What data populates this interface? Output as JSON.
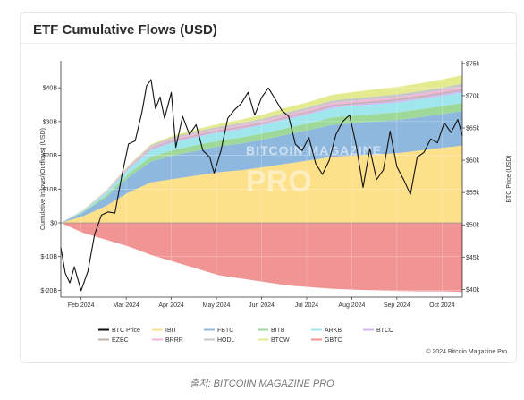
{
  "card": {
    "title": "ETF Cumulative Flows (USD)",
    "copyright": "© 2024 Bitcoin Magazine Pro."
  },
  "caption": "출처: BITCOIIN MAGAZINE PRO",
  "watermark": {
    "line1": "BITCOIN MAGAZINE",
    "line2": "PRO"
  },
  "chart_data": {
    "type": "area",
    "title": "ETF Cumulative Flows (USD)",
    "xlabel": "",
    "ylabel": "Cumulative Inflows/(Outflows) (USD)",
    "y2label": "BTC Price (USD)",
    "x_ticks": [
      "Feb 2024",
      "Mar 2024",
      "Apr 2024",
      "May 2024",
      "Jun 2024",
      "Jul 2024",
      "Aug 2024",
      "Sep 2024",
      "Oct 2024"
    ],
    "y_ticks": [
      "$40B",
      "$30B",
      "$20B",
      "$10B",
      "$0",
      "$-10B",
      "$-20B"
    ],
    "y_tick_values": [
      40,
      30,
      20,
      10,
      0,
      -10,
      -20
    ],
    "y2_ticks": [
      "$75k",
      "$70k",
      "$65k",
      "$60k",
      "$55k",
      "$50k",
      "$45k",
      "$40k"
    ],
    "y2_tick_values": [
      75000,
      70000,
      65000,
      60000,
      55000,
      50000,
      45000,
      40000
    ],
    "ylim": [
      -22,
      48
    ],
    "y2lim": [
      38800,
      75400
    ],
    "x_months": [
      0,
      8.9
    ],
    "grid": true,
    "legend_position": "bottom",
    "months": [
      0,
      0.5,
      1,
      1.5,
      2,
      2.5,
      3,
      3.5,
      4,
      4.5,
      5,
      5.5,
      6,
      6.5,
      7,
      7.5,
      8,
      8.5,
      8.9
    ],
    "series": [
      {
        "name": "IBIT",
        "color": "#fde08a",
        "values": [
          0,
          2,
          5,
          9,
          12,
          13,
          14,
          15,
          15.6,
          16.5,
          17.5,
          18.5,
          19.5,
          20,
          20.3,
          20.7,
          21.5,
          22.3,
          22.9
        ]
      },
      {
        "name": "FBTC",
        "color": "#8fb8de",
        "values": [
          0,
          1.1,
          2.5,
          4.5,
          6.2,
          7,
          7.3,
          7.6,
          7.9,
          8.2,
          8.6,
          9,
          9.5,
          9.6,
          9.7,
          9.8,
          9.9,
          10,
          10.2
        ]
      },
      {
        "name": "BITB",
        "color": "#9ed99a",
        "values": [
          0,
          0.2,
          0.6,
          1,
          1.4,
          1.6,
          1.7,
          1.75,
          1.8,
          1.85,
          1.95,
          2,
          2.15,
          2.2,
          2.25,
          2.3,
          2.3,
          2.35,
          2.4
        ]
      },
      {
        "name": "ARKB",
        "color": "#9fe7ec",
        "values": [
          0,
          0.3,
          0.8,
          1.4,
          2,
          2.3,
          2.35,
          2.4,
          2.45,
          2.5,
          2.6,
          2.7,
          2.8,
          2.85,
          2.9,
          2.95,
          3,
          3.05,
          3.1
        ]
      },
      {
        "name": "BTCO",
        "color": "#d6b6f0",
        "values": [
          0,
          0.05,
          0.1,
          0.2,
          0.3,
          0.35,
          0.35,
          0.4,
          0.4,
          0.4,
          0.45,
          0.45,
          0.5,
          0.5,
          0.5,
          0.5,
          0.5,
          0.55,
          0.55
        ]
      },
      {
        "name": "EZBC",
        "color": "#c4b1ad",
        "values": [
          0,
          0.05,
          0.1,
          0.2,
          0.3,
          0.35,
          0.35,
          0.35,
          0.4,
          0.4,
          0.4,
          0.45,
          0.45,
          0.45,
          0.45,
          0.5,
          0.5,
          0.5,
          0.5
        ]
      },
      {
        "name": "BRRR",
        "color": "#f2b6dd",
        "values": [
          0,
          0.05,
          0.1,
          0.2,
          0.3,
          0.35,
          0.4,
          0.4,
          0.45,
          0.45,
          0.5,
          0.5,
          0.55,
          0.55,
          0.6,
          0.6,
          0.6,
          0.65,
          0.7
        ]
      },
      {
        "name": "HODL",
        "color": "#c8c8c8",
        "values": [
          0,
          0.1,
          0.2,
          0.35,
          0.5,
          0.55,
          0.6,
          0.6,
          0.6,
          0.65,
          0.7,
          0.7,
          0.75,
          0.75,
          0.8,
          0.8,
          0.8,
          0.8,
          0.9
        ]
      },
      {
        "name": "BTCW",
        "color": "#e4ea8e",
        "values": [
          0,
          0.05,
          0.1,
          0.2,
          0.3,
          0.4,
          0.6,
          0.8,
          1,
          1.2,
          1.4,
          1.5,
          1.7,
          1.9,
          2.1,
          2.2,
          2.3,
          2.4,
          2.5
        ]
      },
      {
        "name": "GBTC",
        "color": "#f09494",
        "values": [
          0,
          -3,
          -5,
          -7,
          -9.5,
          -11.5,
          -13.5,
          -15.5,
          -16.5,
          -17.5,
          -18.5,
          -19,
          -19.5,
          -19.8,
          -20,
          -20.2,
          -20.3,
          -20.3,
          -20.5
        ]
      }
    ],
    "btc_price": {
      "name": "BTC Price",
      "color": "#111111",
      "months": [
        0,
        0.1,
        0.2,
        0.3,
        0.45,
        0.6,
        0.75,
        0.9,
        1.05,
        1.2,
        1.35,
        1.5,
        1.65,
        1.8,
        1.9,
        2.0,
        2.1,
        2.2,
        2.3,
        2.45,
        2.55,
        2.7,
        2.85,
        3.0,
        3.15,
        3.3,
        3.4,
        3.55,
        3.7,
        3.85,
        4.0,
        4.15,
        4.3,
        4.45,
        4.6,
        4.75,
        4.9,
        5.05,
        5.2,
        5.35,
        5.5,
        5.65,
        5.8,
        5.95,
        6.1,
        6.25,
        6.4,
        6.55,
        6.7,
        6.85,
        7.0,
        7.15,
        7.3,
        7.45,
        7.6,
        7.75,
        7.9,
        8.05,
        8.2,
        8.35,
        8.5,
        8.65,
        8.8,
        8.9
      ],
      "values": [
        46500,
        42500,
        41000,
        43500,
        39800,
        42800,
        48500,
        51500,
        52000,
        51800,
        57500,
        62500,
        63000,
        67500,
        71500,
        72500,
        68000,
        69800,
        66500,
        70500,
        62000,
        66800,
        64000,
        65500,
        61500,
        60500,
        58000,
        61500,
        66500,
        67800,
        68800,
        70500,
        67000,
        69700,
        71200,
        69500,
        67700,
        66800,
        62500,
        61500,
        63500,
        59500,
        57800,
        60000,
        64000,
        66000,
        67000,
        62300,
        55800,
        61800,
        57000,
        58500,
        64500,
        59000,
        57000,
        54700,
        60500,
        61200,
        63300,
        62700,
        65800,
        64300,
        66300,
        63800
      ]
    }
  },
  "legend": {
    "row1": [
      {
        "label": "BTC Price",
        "type": "line",
        "color": "#111111"
      },
      {
        "label": "IBIT",
        "type": "line",
        "color": "#fde08a"
      },
      {
        "label": "FBTC",
        "type": "line",
        "color": "#8fb8de"
      },
      {
        "label": "BITB",
        "type": "line",
        "color": "#9ed99a"
      },
      {
        "label": "ARKB",
        "type": "line",
        "color": "#9fe7ec"
      },
      {
        "label": "BTCO",
        "type": "line",
        "color": "#d6b6f0"
      }
    ],
    "row2": [
      {
        "label": "EZBC",
        "type": "line",
        "color": "#c4b1ad"
      },
      {
        "label": "BRRR",
        "type": "line",
        "color": "#f2b6dd"
      },
      {
        "label": "HODL",
        "type": "line",
        "color": "#c8c8c8"
      },
      {
        "label": "BTCW",
        "type": "line",
        "color": "#e4ea8e"
      },
      {
        "label": "GBTC",
        "type": "line",
        "color": "#f09494"
      }
    ]
  }
}
